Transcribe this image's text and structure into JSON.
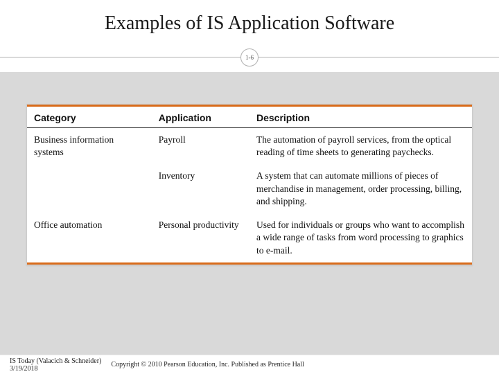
{
  "slide": {
    "title": "Examples of IS Application Software",
    "page_badge": "1-6"
  },
  "table": {
    "headers": {
      "category": "Category",
      "application": "Application",
      "description": "Description"
    },
    "rows": [
      {
        "category": "Business information systems",
        "application": "Payroll",
        "description": "The automation of payroll services, from the optical reading of time sheets to generating paychecks."
      },
      {
        "category": "",
        "application": "Inventory",
        "description": "A system that can automate millions of pieces of merchandise in management, order processing, billing, and shipping."
      },
      {
        "category": "Office automation",
        "application": "Personal productivity",
        "description": "Used for individuals or groups who want to accomplish a wide range of tasks from word processing to graphics to e-mail."
      }
    ]
  },
  "footer": {
    "source": "IS Today (Valacich & Schneider)",
    "date": "3/19/2018",
    "copyright": "Copyright © 2010 Pearson Education, Inc. Published as Prentice Hall"
  },
  "style": {
    "accent_color": "#d96b1a",
    "title_fontsize": 28,
    "body_fontsize": 13.5,
    "header_fontsize": 14,
    "background_gray": "#d9d9d9"
  }
}
